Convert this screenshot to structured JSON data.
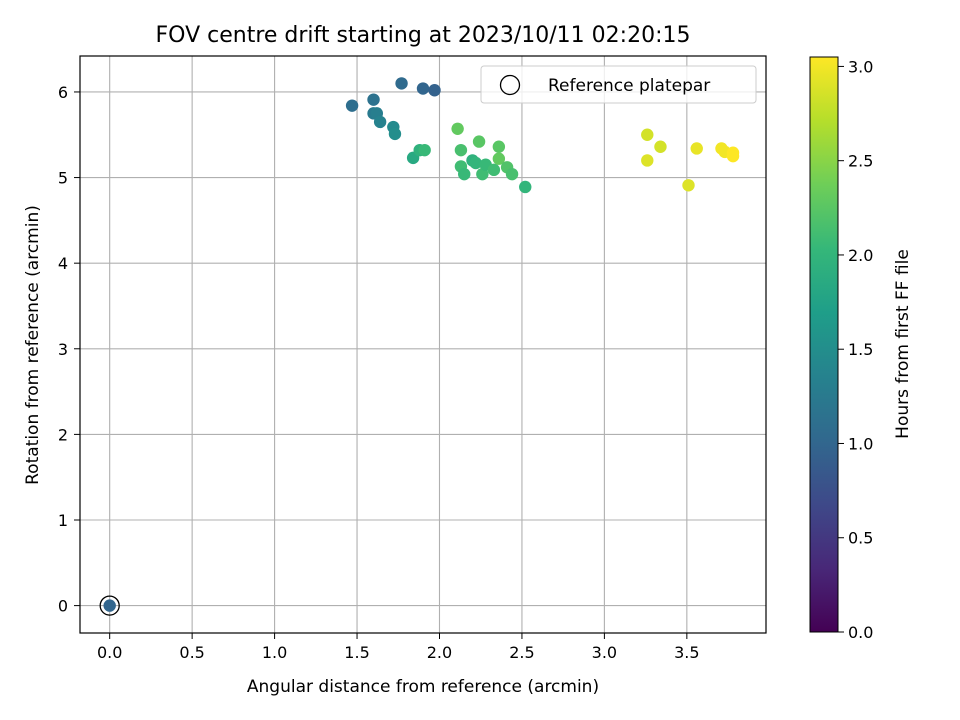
{
  "chart_data": {
    "type": "scatter",
    "title": "FOV centre drift starting at 2023/10/11 02:20:15",
    "xlabel": "Angular distance from reference (arcmin)",
    "ylabel": "Rotation from reference (arcmin)",
    "xlim": [
      -0.18,
      3.98
    ],
    "ylim": [
      -0.32,
      6.42
    ],
    "xticks": [
      0.0,
      0.5,
      1.0,
      1.5,
      2.0,
      2.5,
      3.0,
      3.5
    ],
    "xtick_labels": [
      "0.0",
      "0.5",
      "1.0",
      "1.5",
      "2.0",
      "2.5",
      "3.0",
      "3.5"
    ],
    "yticks": [
      0,
      1,
      2,
      3,
      4,
      5,
      6
    ],
    "ytick_labels": [
      "0",
      "1",
      "2",
      "3",
      "4",
      "5",
      "6"
    ],
    "grid": true,
    "legend": {
      "position": "top-right",
      "entries": [
        "Reference platepar"
      ]
    },
    "colorbar": {
      "label": "Hours from first FF file",
      "colormap": "viridis",
      "range": [
        0.0,
        3.05
      ],
      "ticks": [
        0.0,
        0.5,
        1.0,
        1.5,
        2.0,
        2.5,
        3.0
      ],
      "tick_labels": [
        "0.0",
        "0.5",
        "1.0",
        "1.5",
        "2.0",
        "2.5",
        "3.0"
      ],
      "stops": [
        "#440154",
        "#482878",
        "#3e4989",
        "#31688e",
        "#26828e",
        "#1f9e89",
        "#35b779",
        "#6ece58",
        "#b5de2b",
        "#fde725"
      ]
    },
    "reference_point": {
      "x": 0.0,
      "y": 0.0,
      "hours": 1.0
    },
    "points": [
      {
        "x": 1.47,
        "y": 5.84,
        "hours": 1.1
      },
      {
        "x": 1.6,
        "y": 5.91,
        "hours": 1.15
      },
      {
        "x": 1.77,
        "y": 6.1,
        "hours": 1.05
      },
      {
        "x": 1.9,
        "y": 6.04,
        "hours": 1.0
      },
      {
        "x": 1.97,
        "y": 6.02,
        "hours": 0.95
      },
      {
        "x": 1.6,
        "y": 5.75,
        "hours": 1.25
      },
      {
        "x": 1.62,
        "y": 5.75,
        "hours": 1.3
      },
      {
        "x": 1.64,
        "y": 5.65,
        "hours": 1.35
      },
      {
        "x": 1.72,
        "y": 5.59,
        "hours": 1.45
      },
      {
        "x": 1.73,
        "y": 5.51,
        "hours": 1.5
      },
      {
        "x": 1.84,
        "y": 5.23,
        "hours": 1.85
      },
      {
        "x": 1.88,
        "y": 5.32,
        "hours": 1.95
      },
      {
        "x": 1.91,
        "y": 5.32,
        "hours": 2.05
      },
      {
        "x": 2.11,
        "y": 5.57,
        "hours": 2.3
      },
      {
        "x": 2.13,
        "y": 5.32,
        "hours": 2.15
      },
      {
        "x": 2.13,
        "y": 5.13,
        "hours": 2.1
      },
      {
        "x": 2.15,
        "y": 5.04,
        "hours": 2.05
      },
      {
        "x": 2.2,
        "y": 5.2,
        "hours": 1.95
      },
      {
        "x": 2.22,
        "y": 5.17,
        "hours": 2.0
      },
      {
        "x": 2.24,
        "y": 5.42,
        "hours": 2.25
      },
      {
        "x": 2.26,
        "y": 5.04,
        "hours": 2.1
      },
      {
        "x": 2.28,
        "y": 5.15,
        "hours": 2.05
      },
      {
        "x": 2.33,
        "y": 5.09,
        "hours": 2.1
      },
      {
        "x": 2.36,
        "y": 5.36,
        "hours": 2.25
      },
      {
        "x": 2.36,
        "y": 5.22,
        "hours": 2.3
      },
      {
        "x": 2.41,
        "y": 5.12,
        "hours": 2.2
      },
      {
        "x": 2.44,
        "y": 5.04,
        "hours": 2.15
      },
      {
        "x": 2.52,
        "y": 4.89,
        "hours": 2.0
      },
      {
        "x": 3.26,
        "y": 5.5,
        "hours": 2.85
      },
      {
        "x": 3.26,
        "y": 5.2,
        "hours": 2.9
      },
      {
        "x": 3.34,
        "y": 5.36,
        "hours": 2.85
      },
      {
        "x": 3.51,
        "y": 4.91,
        "hours": 2.9
      },
      {
        "x": 3.56,
        "y": 5.34,
        "hours": 2.95
      },
      {
        "x": 3.71,
        "y": 5.34,
        "hours": 3.0
      },
      {
        "x": 3.73,
        "y": 5.3,
        "hours": 3.0
      },
      {
        "x": 3.78,
        "y": 5.29,
        "hours": 3.05
      },
      {
        "x": 3.78,
        "y": 5.25,
        "hours": 3.05
      }
    ]
  }
}
